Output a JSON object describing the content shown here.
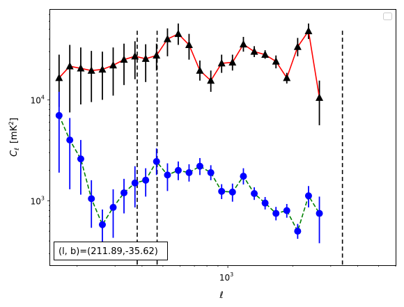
{
  "chart_data": {
    "type": "scatter",
    "title": "",
    "xlabel": "ℓ",
    "ylabel_main": "C",
    "ylabel_sub": "ℓ",
    "ylabel_unit": "[mK",
    "ylabel_unit_sup": "2",
    "ylabel_unit_close": "]",
    "x_scale": "log",
    "y_scale": "log",
    "xlim": [
      150,
      6000
    ],
    "ylim": [
      230,
      78000
    ],
    "x_tick_labels": [
      {
        "value": 1000,
        "base": "10",
        "exp": "3"
      }
    ],
    "y_tick_labels": [
      {
        "value": 1000,
        "base": "10",
        "exp": "3"
      },
      {
        "value": 10000,
        "base": "10",
        "exp": "4"
      }
    ],
    "legend": {
      "placement": "top-right",
      "entries": []
    },
    "annotation": {
      "prefix": "(l, b)=",
      "value": "(211.89,-35.62)"
    },
    "vlines": [
      380,
      470,
      3400
    ],
    "series": [
      {
        "color": "#ff0000",
        "marker": "triangle",
        "line_style": "solid",
        "points": [
          {
            "x": 165,
            "y": 16500,
            "lo": 8500,
            "hi": 28000
          },
          {
            "x": 185,
            "y": 21500,
            "lo": 7500,
            "hi": 35000
          },
          {
            "x": 208,
            "y": 20500,
            "lo": 9000,
            "hi": 33000
          },
          {
            "x": 233,
            "y": 19500,
            "lo": 9500,
            "hi": 30500
          },
          {
            "x": 262,
            "y": 20000,
            "lo": 10000,
            "hi": 30000
          },
          {
            "x": 294,
            "y": 22000,
            "lo": 11000,
            "hi": 33000
          },
          {
            "x": 330,
            "y": 25000,
            "lo": 14000,
            "hi": 36000
          },
          {
            "x": 371,
            "y": 27000,
            "lo": 16000,
            "hi": 38000
          },
          {
            "x": 416,
            "y": 25500,
            "lo": 15000,
            "hi": 35500
          },
          {
            "x": 467,
            "y": 27500,
            "lo": 19500,
            "hi": 36000
          },
          {
            "x": 525,
            "y": 40000,
            "lo": 27000,
            "hi": 51000
          },
          {
            "x": 589,
            "y": 45000,
            "lo": 35000,
            "hi": 57000
          },
          {
            "x": 661,
            "y": 35000,
            "lo": 25000,
            "hi": 45000
          },
          {
            "x": 742,
            "y": 19500,
            "lo": 15500,
            "hi": 24500
          },
          {
            "x": 834,
            "y": 15500,
            "lo": 12000,
            "hi": 19500
          },
          {
            "x": 936,
            "y": 23000,
            "lo": 18500,
            "hi": 28000
          },
          {
            "x": 1051,
            "y": 23500,
            "lo": 19500,
            "hi": 28000
          },
          {
            "x": 1181,
            "y": 35500,
            "lo": 30000,
            "hi": 42000
          },
          {
            "x": 1326,
            "y": 30000,
            "lo": 26500,
            "hi": 34000
          },
          {
            "x": 1489,
            "y": 28000,
            "lo": 25500,
            "hi": 31000
          },
          {
            "x": 1672,
            "y": 24000,
            "lo": 20500,
            "hi": 27500
          },
          {
            "x": 1877,
            "y": 16500,
            "lo": 14500,
            "hi": 18500
          },
          {
            "x": 2108,
            "y": 33500,
            "lo": 27000,
            "hi": 41000
          },
          {
            "x": 2367,
            "y": 48000,
            "lo": 40000,
            "hi": 57000
          },
          {
            "x": 2658,
            "y": 10500,
            "lo": 5600,
            "hi": 15500
          }
        ]
      },
      {
        "color": "#008000",
        "marker": "circle",
        "line_style": "dashed",
        "points": [
          {
            "x": 165,
            "y": 7000,
            "lo": 1900,
            "hi": 12000
          },
          {
            "x": 185,
            "y": 4000,
            "lo": 1300,
            "hi": 6600
          },
          {
            "x": 208,
            "y": 2600,
            "lo": 1150,
            "hi": 4000
          },
          {
            "x": 233,
            "y": 1050,
            "lo": 540,
            "hi": 1600
          },
          {
            "x": 262,
            "y": 580,
            "lo": 380,
            "hi": 820
          },
          {
            "x": 294,
            "y": 860,
            "lo": 430,
            "hi": 1300
          },
          {
            "x": 330,
            "y": 1200,
            "lo": 750,
            "hi": 1650
          },
          {
            "x": 371,
            "y": 1500,
            "lo": 860,
            "hi": 2200
          },
          {
            "x": 416,
            "y": 1600,
            "lo": 1100,
            "hi": 2100
          },
          {
            "x": 467,
            "y": 2450,
            "lo": 1800,
            "hi": 3300
          },
          {
            "x": 525,
            "y": 1800,
            "lo": 1250,
            "hi": 2350
          },
          {
            "x": 589,
            "y": 2000,
            "lo": 1600,
            "hi": 2450
          },
          {
            "x": 661,
            "y": 1900,
            "lo": 1550,
            "hi": 2300
          },
          {
            "x": 742,
            "y": 2200,
            "lo": 1800,
            "hi": 2650
          },
          {
            "x": 834,
            "y": 1900,
            "lo": 1600,
            "hi": 2250
          },
          {
            "x": 936,
            "y": 1240,
            "lo": 1040,
            "hi": 1460
          },
          {
            "x": 1051,
            "y": 1220,
            "lo": 980,
            "hi": 1480
          },
          {
            "x": 1181,
            "y": 1750,
            "lo": 1450,
            "hi": 2100
          },
          {
            "x": 1326,
            "y": 1180,
            "lo": 1020,
            "hi": 1360
          },
          {
            "x": 1489,
            "y": 950,
            "lo": 820,
            "hi": 1090
          },
          {
            "x": 1672,
            "y": 750,
            "lo": 640,
            "hi": 870
          },
          {
            "x": 1877,
            "y": 800,
            "lo": 680,
            "hi": 930
          },
          {
            "x": 2108,
            "y": 500,
            "lo": 420,
            "hi": 590
          },
          {
            "x": 2367,
            "y": 1120,
            "lo": 860,
            "hi": 1400
          },
          {
            "x": 2658,
            "y": 750,
            "lo": 380,
            "hi": 1100
          }
        ]
      }
    ],
    "marker_colors": {
      "triangle": "#000000",
      "circle": "#0000ff"
    },
    "errorbar_colors": {
      "triangle": "#000000",
      "circle": "#0000ff"
    }
  }
}
